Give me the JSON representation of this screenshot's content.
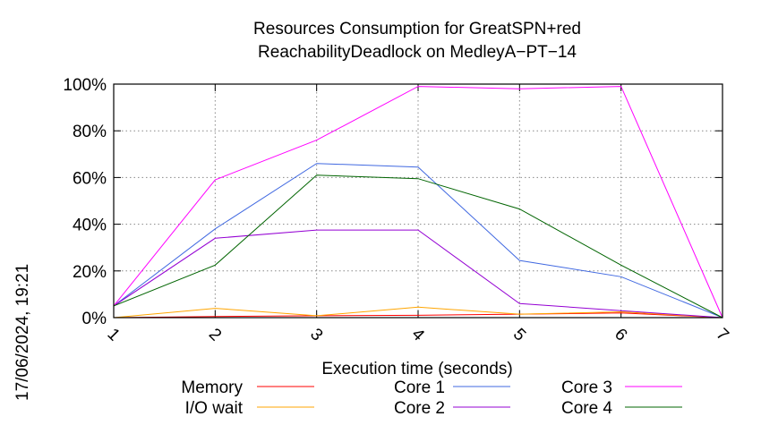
{
  "chart_data": {
    "type": "line",
    "title": "Resources Consumption for GreatSPN+red",
    "subtitle": "ReachabilityDeadlock on MedleyA−PT−14",
    "xlabel": "Execution time (seconds)",
    "ylabel": "",
    "x": [
      1,
      2,
      3,
      4,
      5,
      6,
      7
    ],
    "xlim": [
      1,
      7
    ],
    "ylim": [
      0,
      100
    ],
    "y_ticks": [
      "0%",
      "20%",
      "40%",
      "60%",
      "80%",
      "100%"
    ],
    "x_ticks": [
      "1",
      "2",
      "3",
      "4",
      "5",
      "6",
      "7"
    ],
    "grid": true,
    "legend_position": "bottom",
    "series": [
      {
        "name": "Memory",
        "color": "#ff0000",
        "values": [
          0,
          0.5,
          0.8,
          1.0,
          1.5,
          2.0,
          0
        ]
      },
      {
        "name": "I/O wait",
        "color": "#ffa500",
        "values": [
          0,
          4,
          0.8,
          4.5,
          1.5,
          2.5,
          0
        ]
      },
      {
        "name": "Core 1",
        "color": "#4169e1",
        "values": [
          5,
          38,
          66,
          64.5,
          24.5,
          17.5,
          0
        ]
      },
      {
        "name": "Core 2",
        "color": "#9400d3",
        "values": [
          5,
          34,
          37.5,
          37.5,
          6,
          3,
          0
        ]
      },
      {
        "name": "Core 3",
        "color": "#ff00ff",
        "values": [
          5,
          59,
          76,
          99,
          98,
          99,
          0
        ]
      },
      {
        "name": "Core 4",
        "color": "#006400",
        "values": [
          5,
          22.5,
          61,
          59.5,
          46.5,
          22.5,
          0
        ]
      }
    ]
  },
  "timestamp": "17/06/2024, 19:21"
}
